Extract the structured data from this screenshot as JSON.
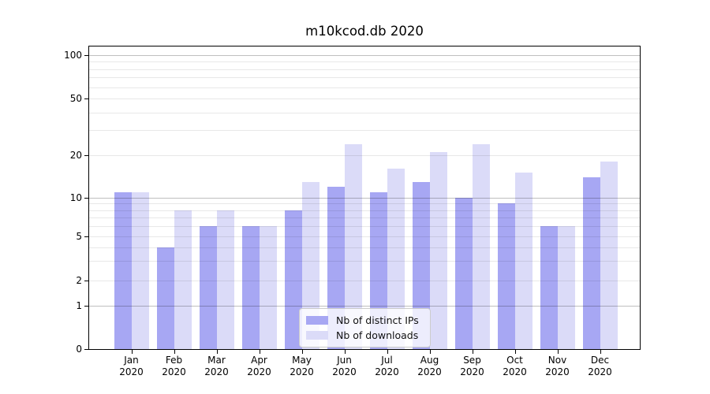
{
  "title": "m10kcod.db 2020",
  "y_axis": {
    "tick_labels": [
      "0",
      "1",
      "2",
      "5",
      "10",
      "20",
      "50",
      "100"
    ]
  },
  "x_axis": {
    "months": [
      "Jan",
      "Feb",
      "Mar",
      "Apr",
      "May",
      "Jun",
      "Jul",
      "Aug",
      "Sep",
      "Oct",
      "Nov",
      "Dec"
    ],
    "year": "2020"
  },
  "legend": {
    "items": [
      {
        "label": "Nb of distinct IPs"
      },
      {
        "label": "Nb of downloads"
      }
    ]
  },
  "colors": {
    "distinct_ips": "#a7a7f3",
    "downloads": "#dbdbf8",
    "major_grid": "rgba(0,0,0,0.25)",
    "minor_grid": "rgba(0,0,0,0.09)",
    "axis": "#000000",
    "legend_border": "#cccccc"
  },
  "chart_data": {
    "type": "bar",
    "title": "m10kcod.db 2020",
    "categories": [
      "Jan 2020",
      "Feb 2020",
      "Mar 2020",
      "Apr 2020",
      "May 2020",
      "Jun 2020",
      "Jul 2020",
      "Aug 2020",
      "Sep 2020",
      "Oct 2020",
      "Nov 2020",
      "Dec 2020"
    ],
    "series": [
      {
        "name": "Nb of distinct IPs",
        "color": "#a7a7f3",
        "values": [
          11,
          4,
          6,
          6,
          8,
          12,
          11,
          13,
          10,
          9,
          6,
          14
        ]
      },
      {
        "name": "Nb of downloads",
        "color": "#dbdbf8",
        "values": [
          11,
          8,
          8,
          6,
          13,
          24,
          16,
          21,
          24,
          15,
          6,
          18
        ]
      }
    ],
    "xlabel": "",
    "ylabel": "",
    "yscale": "log-like with 0 origin",
    "y_ticks": [
      0,
      1,
      2,
      5,
      10,
      20,
      50,
      100
    ],
    "ylim": [
      0,
      115
    ],
    "grid": true,
    "legend_position": "lower center"
  }
}
